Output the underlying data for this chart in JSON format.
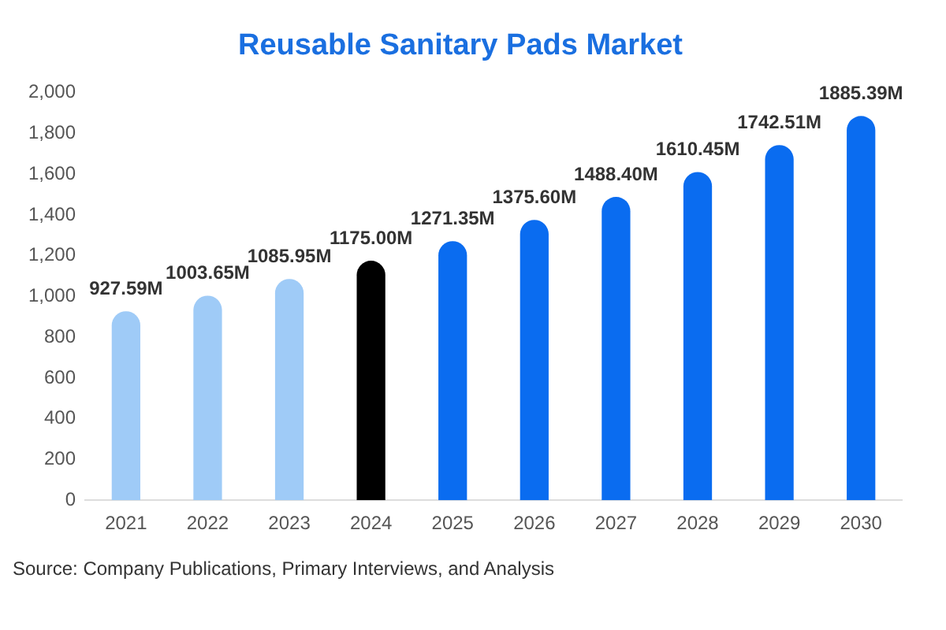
{
  "chart_data": {
    "type": "bar",
    "title": "Reusable Sanitary Pads Market",
    "categories": [
      "2021",
      "2022",
      "2023",
      "2024",
      "2025",
      "2026",
      "2027",
      "2028",
      "2029",
      "2030"
    ],
    "values": [
      927.59,
      1003.65,
      1085.95,
      1175.0,
      1271.35,
      1375.6,
      1488.4,
      1610.45,
      1742.51,
      1885.39
    ],
    "colors": [
      "#9fcbf7",
      "#9fcbf7",
      "#9fcbf7",
      "#000000",
      "#0a6cf0",
      "#0a6cf0",
      "#0a6cf0",
      "#0a6cf0",
      "#0a6cf0",
      "#0a6cf0"
    ],
    "value_labels": [
      "927.59M",
      "1003.65M",
      "1085.95M",
      "1175.00M",
      "1271.35M",
      "1375.60M",
      "1488.40M",
      "1610.45M",
      "1742.51M",
      "1885.39M"
    ],
    "ylim": [
      0,
      2000
    ],
    "yticks": [
      0,
      200,
      400,
      600,
      800,
      {
        "value": 1000,
        "label": "1,000"
      },
      {
        "value": 1200,
        "label": "1,200"
      },
      {
        "value": 1400,
        "label": "1,400"
      },
      {
        "value": 1600,
        "label": "1,600"
      },
      {
        "value": 1800,
        "label": "1,800"
      },
      {
        "value": 2000,
        "label": "2,000"
      }
    ],
    "grid": false,
    "legend": false,
    "annotations": [
      "Source: Company Publications, Primary Interviews, and Analysis"
    ]
  }
}
